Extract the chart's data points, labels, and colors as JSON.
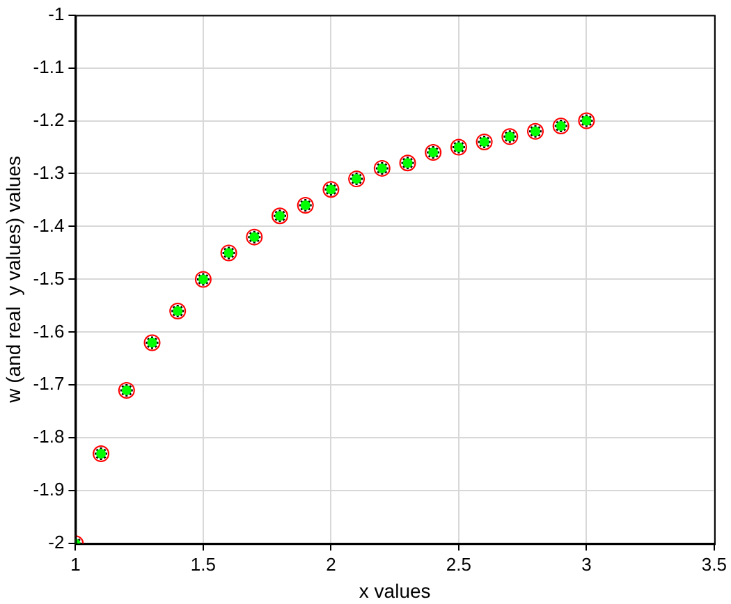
{
  "chart_data": {
    "type": "scatter",
    "xlabel": "x values",
    "ylabel": "w (and real  y values) values",
    "x": [
      1,
      1.1,
      1.2,
      1.3,
      1.4,
      1.5,
      1.6,
      1.7,
      1.8,
      1.9,
      2,
      2.1,
      2.2,
      2.3,
      2.4,
      2.5,
      2.6,
      2.7,
      2.8,
      2.9,
      3
    ],
    "series": [
      {
        "color": "#ff0000",
        "marker": "circle",
        "values": [
          -2,
          -1.83,
          -1.71,
          -1.62,
          -1.56,
          -1.5,
          -1.45,
          -1.42,
          -1.38,
          -1.36,
          -1.33,
          -1.31,
          -1.29,
          -1.28,
          -1.26,
          -1.25,
          -1.24,
          -1.23,
          -1.22,
          -1.21,
          -1.2
        ]
      },
      {
        "color": "#00ff00",
        "marker": "circle",
        "values": [
          -2,
          -1.83,
          -1.71,
          -1.62,
          -1.56,
          -1.5,
          -1.45,
          -1.42,
          -1.38,
          -1.36,
          -1.33,
          -1.31,
          -1.29,
          -1.28,
          -1.26,
          -1.25,
          -1.24,
          -1.23,
          -1.22,
          -1.21,
          -1.2
        ]
      },
      {
        "color": "#000000",
        "marker": "cross",
        "values": [
          -2,
          -1.83,
          -1.71,
          -1.62,
          -1.56,
          -1.5,
          -1.45,
          -1.42,
          -1.38,
          -1.36,
          -1.33,
          -1.31,
          -1.29,
          -1.28,
          -1.26,
          -1.25,
          -1.24,
          -1.23,
          -1.22,
          -1.21,
          -1.2
        ]
      }
    ],
    "xlim": [
      1,
      3.5
    ],
    "xticks": [
      1,
      1.5,
      2,
      2.5,
      3,
      3.5
    ],
    "ylim": [
      -2,
      -1
    ],
    "yticks": [
      -2,
      -1.9,
      -1.8,
      -1.7,
      -1.6,
      -1.5,
      -1.4,
      -1.3,
      -1.2,
      -1.1,
      -1
    ],
    "grid": true,
    "legend": false
  }
}
